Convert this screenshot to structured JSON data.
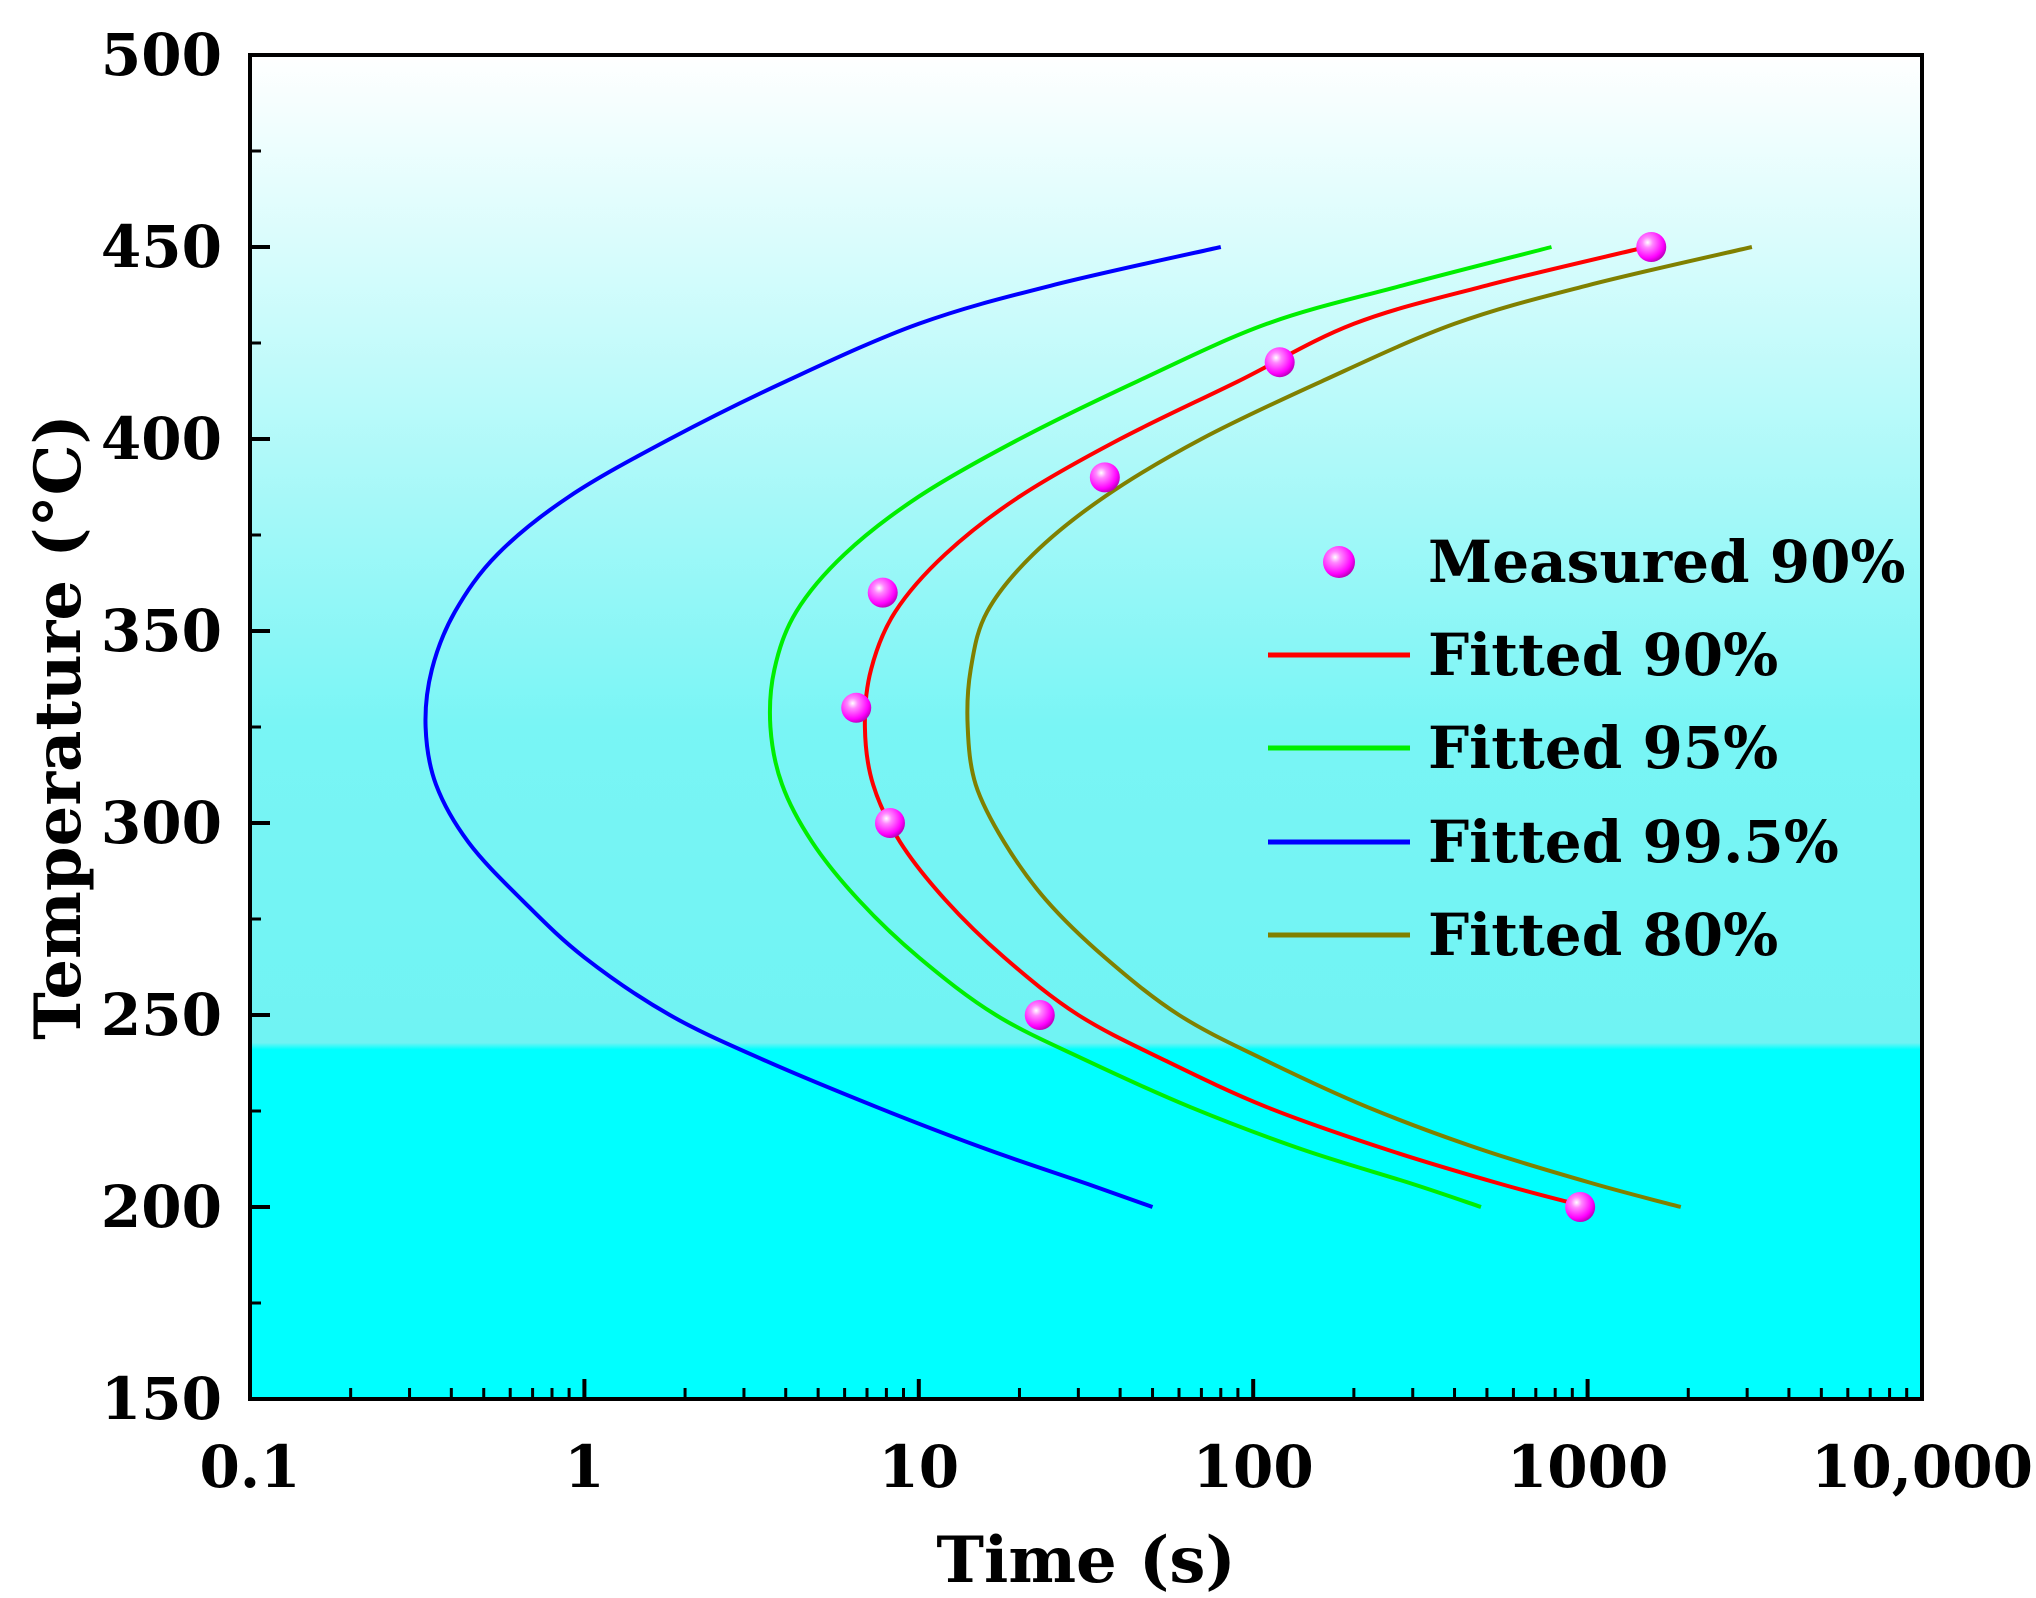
{
  "chart_data": {
    "type": "line",
    "title": "",
    "xlabel": "Time (s)",
    "ylabel": "Temperature (°C)",
    "x_scale": "log",
    "xlim": [
      0.1,
      10000
    ],
    "ylim": [
      150,
      500
    ],
    "x_ticks": [
      {
        "value": 0.1,
        "label": "0.1"
      },
      {
        "value": 1,
        "label": "1"
      },
      {
        "value": 10,
        "label": "10"
      },
      {
        "value": 100,
        "label": "100"
      },
      {
        "value": 1000,
        "label": "1000"
      },
      {
        "value": 10000,
        "label": "10,000"
      }
    ],
    "y_ticks": [
      {
        "value": 150,
        "label": "150"
      },
      {
        "value": 200,
        "label": "200"
      },
      {
        "value": 250,
        "label": "250"
      },
      {
        "value": 300,
        "label": "300"
      },
      {
        "value": 350,
        "label": "350"
      },
      {
        "value": 400,
        "label": "400"
      },
      {
        "value": 450,
        "label": "450"
      },
      {
        "value": 500,
        "label": "500"
      }
    ],
    "grid": false,
    "legend_position": "right",
    "background": {
      "top": "#ffffff",
      "middle": "#79f5f5",
      "bottom": "#00ffff"
    },
    "series": [
      {
        "name": "Measured 90%",
        "kind": "scatter",
        "color": "#ff00ff",
        "points": [
          {
            "x": 1550,
            "y": 450
          },
          {
            "x": 120,
            "y": 420
          },
          {
            "x": 36,
            "y": 390
          },
          {
            "x": 7.8,
            "y": 360
          },
          {
            "x": 6.5,
            "y": 330
          },
          {
            "x": 8.2,
            "y": 300
          },
          {
            "x": 23,
            "y": 250
          },
          {
            "x": 950,
            "y": 200
          }
        ]
      },
      {
        "name": "Fitted 90%",
        "kind": "line",
        "color": "#ff0000",
        "points": [
          {
            "x": 1500,
            "y": 450
          },
          {
            "x": 500,
            "y": 440
          },
          {
            "x": 200,
            "y": 430
          },
          {
            "x": 90,
            "y": 415
          },
          {
            "x": 40,
            "y": 400
          },
          {
            "x": 20,
            "y": 385
          },
          {
            "x": 12,
            "y": 370
          },
          {
            "x": 8.5,
            "y": 355
          },
          {
            "x": 7.2,
            "y": 340
          },
          {
            "x": 6.9,
            "y": 325
          },
          {
            "x": 7.3,
            "y": 310
          },
          {
            "x": 8.8,
            "y": 295
          },
          {
            "x": 12,
            "y": 280
          },
          {
            "x": 18,
            "y": 265
          },
          {
            "x": 30,
            "y": 250
          },
          {
            "x": 55,
            "y": 238
          },
          {
            "x": 110,
            "y": 226
          },
          {
            "x": 250,
            "y": 215
          },
          {
            "x": 550,
            "y": 206
          },
          {
            "x": 1000,
            "y": 200
          }
        ]
      },
      {
        "name": "Fitted 95%",
        "kind": "line",
        "color": "#00ee00",
        "points": [
          {
            "x": 780,
            "y": 450
          },
          {
            "x": 280,
            "y": 440
          },
          {
            "x": 110,
            "y": 430
          },
          {
            "x": 45,
            "y": 415
          },
          {
            "x": 20,
            "y": 400
          },
          {
            "x": 10,
            "y": 385
          },
          {
            "x": 6,
            "y": 370
          },
          {
            "x": 4.3,
            "y": 355
          },
          {
            "x": 3.7,
            "y": 340
          },
          {
            "x": 3.6,
            "y": 325
          },
          {
            "x": 3.9,
            "y": 310
          },
          {
            "x": 4.8,
            "y": 295
          },
          {
            "x": 6.6,
            "y": 280
          },
          {
            "x": 10,
            "y": 265
          },
          {
            "x": 17,
            "y": 250
          },
          {
            "x": 32,
            "y": 238
          },
          {
            "x": 65,
            "y": 226
          },
          {
            "x": 140,
            "y": 215
          },
          {
            "x": 300,
            "y": 206
          },
          {
            "x": 480,
            "y": 200
          }
        ]
      },
      {
        "name": "Fitted 99.5%",
        "kind": "line",
        "color": "#0000ff",
        "points": [
          {
            "x": 80,
            "y": 450
          },
          {
            "x": 25,
            "y": 440
          },
          {
            "x": 10,
            "y": 430
          },
          {
            "x": 4,
            "y": 415
          },
          {
            "x": 1.8,
            "y": 400
          },
          {
            "x": 0.9,
            "y": 385
          },
          {
            "x": 0.55,
            "y": 370
          },
          {
            "x": 0.41,
            "y": 355
          },
          {
            "x": 0.35,
            "y": 340
          },
          {
            "x": 0.335,
            "y": 325
          },
          {
            "x": 0.36,
            "y": 310
          },
          {
            "x": 0.45,
            "y": 295
          },
          {
            "x": 0.65,
            "y": 280
          },
          {
            "x": 1.0,
            "y": 265
          },
          {
            "x": 1.8,
            "y": 250
          },
          {
            "x": 3.5,
            "y": 238
          },
          {
            "x": 7.5,
            "y": 226
          },
          {
            "x": 16,
            "y": 215
          },
          {
            "x": 32,
            "y": 206
          },
          {
            "x": 50,
            "y": 200
          }
        ]
      },
      {
        "name": "Fitted 80%",
        "kind": "line",
        "color": "#808000",
        "points": [
          {
            "x": 3100,
            "y": 450
          },
          {
            "x": 1000,
            "y": 440
          },
          {
            "x": 400,
            "y": 430
          },
          {
            "x": 160,
            "y": 415
          },
          {
            "x": 70,
            "y": 400
          },
          {
            "x": 36,
            "y": 385
          },
          {
            "x": 22,
            "y": 370
          },
          {
            "x": 16,
            "y": 355
          },
          {
            "x": 14.3,
            "y": 340
          },
          {
            "x": 14,
            "y": 325
          },
          {
            "x": 14.8,
            "y": 310
          },
          {
            "x": 18,
            "y": 295
          },
          {
            "x": 24,
            "y": 280
          },
          {
            "x": 36,
            "y": 265
          },
          {
            "x": 60,
            "y": 250
          },
          {
            "x": 110,
            "y": 238
          },
          {
            "x": 220,
            "y": 226
          },
          {
            "x": 480,
            "y": 215
          },
          {
            "x": 1050,
            "y": 206
          },
          {
            "x": 1900,
            "y": 200
          }
        ]
      }
    ]
  }
}
